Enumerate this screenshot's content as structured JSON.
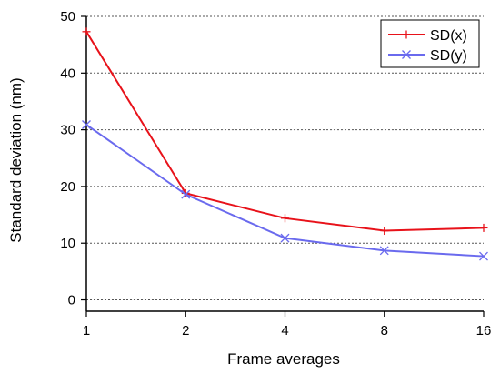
{
  "chart_data": {
    "type": "line",
    "xlabel": "Frame averages",
    "ylabel": "Standard deviation (nm)",
    "x_scale": "log2",
    "x": [
      1,
      2,
      4,
      8,
      16
    ],
    "x_tick_labels": [
      "1",
      "2",
      "4",
      "8",
      "16"
    ],
    "ylim": [
      -2,
      50
    ],
    "y_ticks": [
      0,
      10,
      20,
      30,
      40,
      50
    ],
    "y_tick_labels": [
      "0",
      "10",
      "20",
      "30",
      "40",
      "50"
    ],
    "grid": "horizontal dotted",
    "legend_position": "top-right",
    "series": [
      {
        "name": "SD(x)",
        "color": "#e8121a",
        "marker": "plus",
        "values": [
          47.3,
          18.8,
          14.4,
          12.2,
          12.7
        ]
      },
      {
        "name": "SD(y)",
        "color": "#6a6aee",
        "marker": "cross",
        "values": [
          30.9,
          18.6,
          10.9,
          8.7,
          7.7
        ]
      }
    ]
  }
}
